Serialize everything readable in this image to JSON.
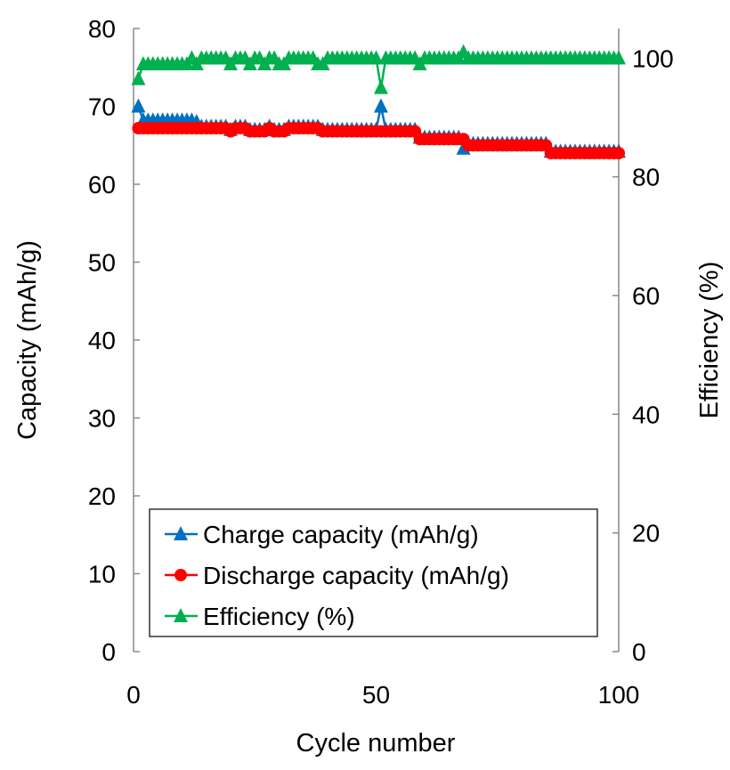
{
  "chart_data": {
    "type": "line",
    "xlabel": "Cycle number",
    "ylabel": "Capacity (mAh/g)",
    "y2label": "Efficiency (%)",
    "xlim": [
      0,
      100
    ],
    "ylim": [
      0,
      80
    ],
    "y2lim": [
      0,
      105
    ],
    "xticks": [
      "0",
      "50",
      "100"
    ],
    "yticks": [
      "0",
      "10",
      "20",
      "30",
      "40",
      "50",
      "60",
      "70",
      "80"
    ],
    "y2ticks": [
      "0",
      "20",
      "40",
      "60",
      "80",
      "100"
    ],
    "grid": false,
    "legend_position": "bottom-center",
    "series": [
      {
        "name": "Charge capacity (mAh/g)",
        "axis": "left",
        "marker": "triangle",
        "color": "#0070C0",
        "values": [
          70.0,
          68.2,
          68.2,
          68.2,
          68.2,
          68.2,
          68.2,
          68.2,
          68.2,
          68.2,
          68.2,
          68.2,
          68.0,
          67.4,
          67.4,
          67.4,
          67.4,
          67.4,
          67.4,
          67.0,
          67.4,
          67.4,
          67.4,
          67.0,
          67.0,
          67.0,
          67.0,
          67.4,
          67.0,
          67.0,
          67.0,
          67.4,
          67.4,
          67.4,
          67.4,
          67.4,
          67.4,
          67.4,
          67.0,
          67.0,
          67.0,
          67.0,
          67.0,
          67.0,
          67.0,
          67.0,
          67.0,
          67.0,
          67.0,
          67.0,
          70.0,
          67.0,
          67.0,
          67.0,
          67.0,
          67.0,
          67.0,
          67.0,
          66.0,
          66.0,
          66.0,
          66.0,
          66.0,
          66.0,
          66.0,
          66.0,
          66.0,
          64.6,
          65.2,
          65.2,
          65.2,
          65.2,
          65.2,
          65.2,
          65.2,
          65.2,
          65.2,
          65.2,
          65.2,
          65.2,
          65.2,
          65.2,
          65.2,
          65.2,
          65.2,
          64.2,
          64.2,
          64.2,
          64.2,
          64.2,
          64.2,
          64.2,
          64.2,
          64.2,
          64.2,
          64.2,
          64.2,
          64.2,
          64.2,
          64.2
        ]
      },
      {
        "name": "Discharge capacity (mAh/g)",
        "axis": "left",
        "marker": "circle",
        "color": "#FF0000",
        "values": [
          67.2,
          67.2,
          67.2,
          67.2,
          67.2,
          67.2,
          67.2,
          67.2,
          67.2,
          67.2,
          67.2,
          67.2,
          67.2,
          67.2,
          67.2,
          67.2,
          67.2,
          67.2,
          67.2,
          66.8,
          67.2,
          67.2,
          67.2,
          66.8,
          66.8,
          66.8,
          66.8,
          67.2,
          66.8,
          66.8,
          66.8,
          67.2,
          67.2,
          67.2,
          67.2,
          67.2,
          67.2,
          67.2,
          66.8,
          66.8,
          66.8,
          66.8,
          66.8,
          66.8,
          66.8,
          66.8,
          66.8,
          66.8,
          66.8,
          66.8,
          66.8,
          66.8,
          66.8,
          66.8,
          66.8,
          66.8,
          66.8,
          66.8,
          65.8,
          65.8,
          65.8,
          65.8,
          65.8,
          65.8,
          65.8,
          65.8,
          65.8,
          65.8,
          65.0,
          65.0,
          65.0,
          65.0,
          65.0,
          65.0,
          65.0,
          65.0,
          65.0,
          65.0,
          65.0,
          65.0,
          65.0,
          65.0,
          65.0,
          65.0,
          65.0,
          64.0,
          64.0,
          64.0,
          64.0,
          64.0,
          64.0,
          64.0,
          64.0,
          64.0,
          64.0,
          64.0,
          64.0,
          64.0,
          64.0,
          64.0
        ]
      },
      {
        "name": "Efficiency (%)",
        "axis": "right",
        "marker": "triangle",
        "color": "#00B050",
        "values": [
          96.5,
          99,
          99,
          99,
          99,
          99,
          99,
          99,
          99,
          99,
          99,
          100,
          99,
          100,
          100,
          100,
          100,
          100,
          100,
          99,
          100,
          100,
          100,
          99,
          100,
          100,
          99,
          100,
          100,
          99,
          99,
          100,
          100,
          100,
          100,
          100,
          100,
          99,
          99,
          100,
          100,
          100,
          100,
          100,
          100,
          100,
          100,
          100,
          100,
          100,
          95,
          100,
          100,
          100,
          100,
          100,
          100,
          100,
          99,
          100,
          100,
          100,
          100,
          100,
          100,
          100,
          100,
          101,
          100,
          100,
          100,
          100,
          100,
          100,
          100,
          100,
          100,
          100,
          100,
          100,
          100,
          100,
          100,
          100,
          100,
          100,
          100,
          100,
          100,
          100,
          100,
          100,
          100,
          100,
          100,
          100,
          100,
          100,
          100,
          100
        ]
      }
    ]
  }
}
